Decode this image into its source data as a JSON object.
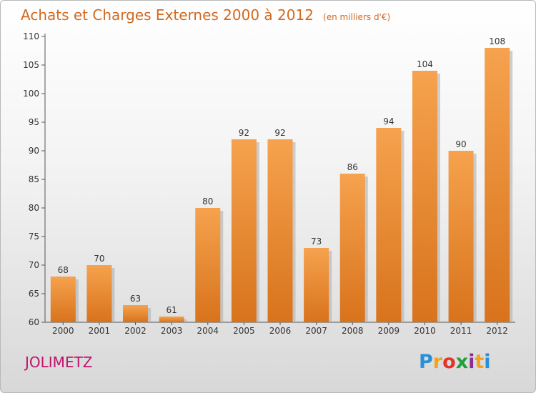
{
  "title": "Achats et Charges Externes 2000 à 2012",
  "subtitle": "(en milliers d'€)",
  "commune": "JOLIMETZ",
  "logo": {
    "letters": [
      {
        "char": "P",
        "color": "#2a8fd6"
      },
      {
        "char": "r",
        "color": "#f4a11c"
      },
      {
        "char": "o",
        "color": "#e5332a"
      },
      {
        "char": "x",
        "color": "#1fa03a"
      },
      {
        "char": "i",
        "color": "#8a2f8f"
      },
      {
        "char": "t",
        "color": "#f4a11c"
      },
      {
        "char": "i",
        "color": "#2a8fd6"
      }
    ]
  },
  "chart_data": {
    "type": "bar",
    "title": "Achats et Charges Externes 2000 à 2012",
    "subtitle": "(en milliers d'€)",
    "xlabel": "",
    "ylabel": "",
    "categories": [
      "2000",
      "2001",
      "2002",
      "2003",
      "2004",
      "2005",
      "2006",
      "2007",
      "2008",
      "2009",
      "2010",
      "2011",
      "2012"
    ],
    "values": [
      68,
      70,
      63,
      61,
      80,
      92,
      92,
      73,
      86,
      94,
      104,
      90,
      108
    ],
    "ylim": [
      60,
      110
    ],
    "yticks": [
      60,
      65,
      70,
      75,
      80,
      85,
      90,
      95,
      100,
      105,
      110
    ],
    "grid": false,
    "legend": "none",
    "bar_color_top": "#f6a24e",
    "bar_color_bottom": "#d8731c"
  }
}
